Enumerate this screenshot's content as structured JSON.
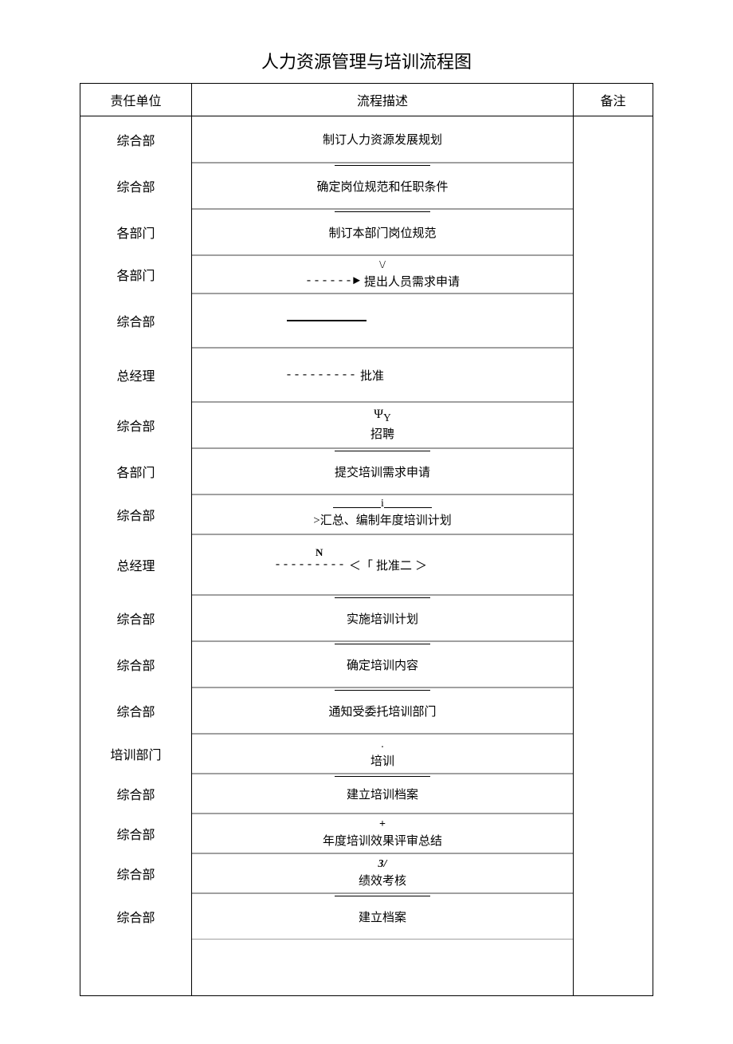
{
  "title": "人力资源管理与培训流程图",
  "headers": {
    "unit": "责任单位",
    "flow": "流程描述",
    "note": "备注"
  },
  "rows": [
    {
      "unit": "综合部",
      "flow": "制订人力资源发展规划",
      "symbol_before": "",
      "symbol_after": ""
    },
    {
      "unit": "综合部",
      "flow": "确定岗位规范和任职条件",
      "symbol_before": "",
      "symbol_after": ""
    },
    {
      "unit": "各部门",
      "flow": "制订本部门岗位规范",
      "symbol_before": "",
      "symbol_after": ""
    },
    {
      "unit": "各部门",
      "flow": "提出人员需求申请",
      "symbol_before": "\\/",
      "arrow_prefix": "------►"
    },
    {
      "unit": "综合部",
      "flow": "",
      "line_only": true
    },
    {
      "unit": "总经理",
      "flow": "批准",
      "dash_prefix": "---------"
    },
    {
      "unit": "综合部",
      "flow": "招聘",
      "symbol_before": "ΨY"
    },
    {
      "unit": "各部门",
      "flow": "提交培训需求申请"
    },
    {
      "unit": "综合部",
      "flow": ">汇总、编制年度培训计划",
      "symbol_before": "i",
      "underlines": true
    },
    {
      "unit": "总经理",
      "flow": "批准二",
      "dash_prefix": "---------",
      "bracket": true,
      "label_n": "N"
    },
    {
      "unit": "综合部",
      "flow": "实施培训计划"
    },
    {
      "unit": "综合部",
      "flow": "确定培训内容"
    },
    {
      "unit": "综合部",
      "flow": "通知受委托培训部门"
    },
    {
      "unit": "培训部门",
      "flow": "培训",
      "symbol_before": "."
    },
    {
      "unit": "综合部",
      "flow": "建立培训档案"
    },
    {
      "unit": "综合部",
      "flow": "年度培训效果评审总结",
      "symbol_before": "+"
    },
    {
      "unit": "综合部",
      "flow": "绩效考核",
      "symbol_before": "3/"
    },
    {
      "unit": "综合部",
      "flow": "建立档案"
    }
  ],
  "colors": {
    "text": "#000000",
    "background": "#ffffff",
    "border": "#000000",
    "inner_border": "#a0a0a0"
  }
}
